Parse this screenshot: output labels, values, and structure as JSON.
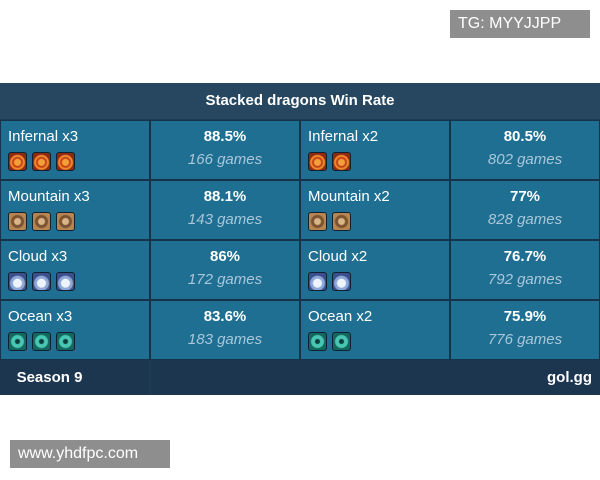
{
  "watermark_top": "TG: MYYJJPP",
  "table": {
    "title": "Stacked dragons Win Rate",
    "rows": [
      [
        "Infernal x3",
        "88.5%",
        "166 games",
        "Infernal x2",
        "80.5%",
        "802 games"
      ],
      [
        "Mountain x3",
        "88.1%",
        "143 games",
        "Mountain x2",
        "77%",
        "828 games"
      ],
      [
        "Cloud x3",
        "86%",
        "172 games",
        "Cloud x2",
        "76.7%",
        "792 games"
      ],
      [
        "Ocean x3",
        "83.6%",
        "183 games",
        "Ocean x2",
        "75.9%",
        "776 games"
      ]
    ],
    "footer": [
      "Season 9",
      "gol.gg"
    ]
  },
  "watermark_bottom": "www.yhdfpc.com"
}
